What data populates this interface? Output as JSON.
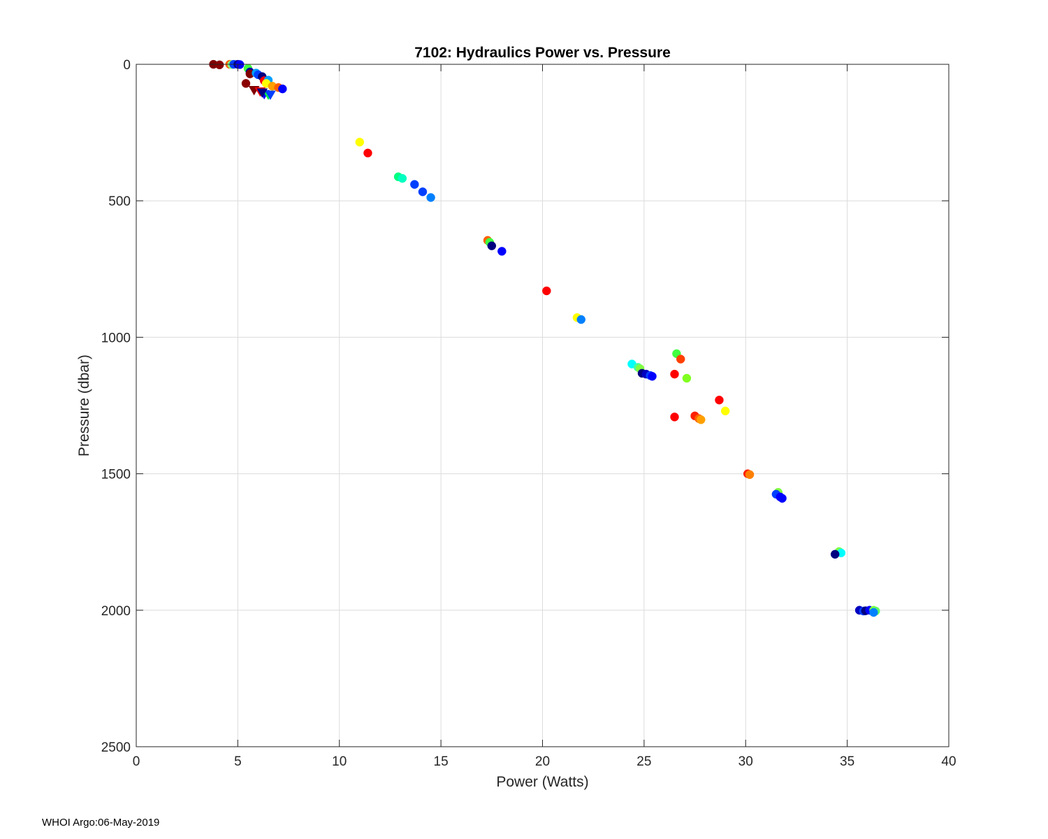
{
  "chart_data": {
    "type": "scatter",
    "title": "7102: Hydraulics Power vs. Pressure",
    "xlabel": "Power (Watts)",
    "ylabel": "Pressure (dbar)",
    "xlim": [
      0,
      40
    ],
    "ylim": [
      0,
      2500
    ],
    "y_reversed": true,
    "xticks": [
      0,
      5,
      10,
      15,
      20,
      25,
      30,
      35,
      40
    ],
    "yticks": [
      0,
      500,
      1000,
      1500,
      2000,
      2500
    ],
    "grid": true,
    "colormap": "jet",
    "points": [
      {
        "x": 3.8,
        "y": 0,
        "color": "#800000",
        "marker": "circle"
      },
      {
        "x": 4.1,
        "y": 2,
        "color": "#8b0000",
        "marker": "circle"
      },
      {
        "x": 4.6,
        "y": 0,
        "color": "#ff6000",
        "marker": "circle"
      },
      {
        "x": 4.7,
        "y": 1,
        "color": "#80ff80",
        "marker": "circle"
      },
      {
        "x": 4.8,
        "y": 0,
        "color": "#0040ff",
        "marker": "circle"
      },
      {
        "x": 5.0,
        "y": 0,
        "color": "#000090",
        "marker": "circle"
      },
      {
        "x": 5.1,
        "y": 1,
        "color": "#0000ff",
        "marker": "circle"
      },
      {
        "x": 5.5,
        "y": 15,
        "color": "#40ff40",
        "marker": "circle"
      },
      {
        "x": 5.6,
        "y": 28,
        "color": "#0000a0",
        "marker": "circle"
      },
      {
        "x": 5.6,
        "y": 35,
        "color": "#800000",
        "marker": "circle"
      },
      {
        "x": 5.9,
        "y": 32,
        "color": "#00a0ff",
        "marker": "circle"
      },
      {
        "x": 6.0,
        "y": 38,
        "color": "#0040ff",
        "marker": "circle"
      },
      {
        "x": 6.2,
        "y": 45,
        "color": "#000080",
        "marker": "circle"
      },
      {
        "x": 6.3,
        "y": 60,
        "color": "#ff0000",
        "marker": "circle"
      },
      {
        "x": 6.5,
        "y": 58,
        "color": "#00a0ff",
        "marker": "circle"
      },
      {
        "x": 6.4,
        "y": 70,
        "color": "#ffff00",
        "marker": "circle"
      },
      {
        "x": 6.7,
        "y": 80,
        "color": "#ffa000",
        "marker": "circle"
      },
      {
        "x": 7.0,
        "y": 85,
        "color": "#ff6000",
        "marker": "circle"
      },
      {
        "x": 7.2,
        "y": 90,
        "color": "#0000ff",
        "marker": "circle"
      },
      {
        "x": 5.4,
        "y": 70,
        "color": "#8b0000",
        "marker": "circle"
      },
      {
        "x": 5.8,
        "y": 95,
        "color": "#800000",
        "marker": "triangle-down"
      },
      {
        "x": 6.1,
        "y": 100,
        "color": "#ff0000",
        "marker": "triangle-down"
      },
      {
        "x": 6.3,
        "y": 110,
        "color": "#0000ff",
        "marker": "triangle-down"
      },
      {
        "x": 6.5,
        "y": 112,
        "color": "#00ff40",
        "marker": "triangle-down"
      },
      {
        "x": 6.6,
        "y": 112,
        "color": "#0040ff",
        "marker": "triangle-down"
      },
      {
        "x": 6.2,
        "y": 104,
        "color": "#000080",
        "marker": "triangle-down"
      },
      {
        "x": 11.0,
        "y": 285,
        "color": "#ffff00",
        "marker": "circle"
      },
      {
        "x": 11.4,
        "y": 325,
        "color": "#ff0000",
        "marker": "circle"
      },
      {
        "x": 12.9,
        "y": 412,
        "color": "#00ff80",
        "marker": "circle"
      },
      {
        "x": 13.1,
        "y": 418,
        "color": "#00ffc0",
        "marker": "circle"
      },
      {
        "x": 13.7,
        "y": 440,
        "color": "#0040ff",
        "marker": "circle"
      },
      {
        "x": 14.1,
        "y": 467,
        "color": "#0040ff",
        "marker": "circle"
      },
      {
        "x": 14.5,
        "y": 488,
        "color": "#0080ff",
        "marker": "circle"
      },
      {
        "x": 17.3,
        "y": 645,
        "color": "#ff6000",
        "marker": "circle"
      },
      {
        "x": 17.4,
        "y": 652,
        "color": "#40ff40",
        "marker": "circle"
      },
      {
        "x": 17.5,
        "y": 665,
        "color": "#000080",
        "marker": "circle"
      },
      {
        "x": 18.0,
        "y": 685,
        "color": "#0000ff",
        "marker": "circle"
      },
      {
        "x": 20.2,
        "y": 830,
        "color": "#ff0000",
        "marker": "circle"
      },
      {
        "x": 21.7,
        "y": 928,
        "color": "#ffff00",
        "marker": "circle"
      },
      {
        "x": 21.9,
        "y": 935,
        "color": "#0080ff",
        "marker": "circle"
      },
      {
        "x": 24.4,
        "y": 1098,
        "color": "#00ffff",
        "marker": "circle"
      },
      {
        "x": 24.7,
        "y": 1110,
        "color": "#40ffa0",
        "marker": "circle"
      },
      {
        "x": 24.8,
        "y": 1115,
        "color": "#80ff40",
        "marker": "circle"
      },
      {
        "x": 24.9,
        "y": 1132,
        "color": "#000080",
        "marker": "circle"
      },
      {
        "x": 25.1,
        "y": 1135,
        "color": "#0000c0",
        "marker": "circle"
      },
      {
        "x": 25.3,
        "y": 1140,
        "color": "#0040ff",
        "marker": "circle"
      },
      {
        "x": 25.4,
        "y": 1143,
        "color": "#0000ff",
        "marker": "circle"
      },
      {
        "x": 26.6,
        "y": 1060,
        "color": "#40ff40",
        "marker": "circle"
      },
      {
        "x": 26.8,
        "y": 1080,
        "color": "#ff4000",
        "marker": "circle"
      },
      {
        "x": 26.5,
        "y": 1135,
        "color": "#ff0000",
        "marker": "circle"
      },
      {
        "x": 27.1,
        "y": 1150,
        "color": "#80ff20",
        "marker": "circle"
      },
      {
        "x": 26.5,
        "y": 1292,
        "color": "#ff0000",
        "marker": "circle"
      },
      {
        "x": 27.5,
        "y": 1288,
        "color": "#ff2000",
        "marker": "circle"
      },
      {
        "x": 27.7,
        "y": 1298,
        "color": "#ff6000",
        "marker": "circle"
      },
      {
        "x": 27.8,
        "y": 1302,
        "color": "#ffa000",
        "marker": "circle"
      },
      {
        "x": 28.7,
        "y": 1230,
        "color": "#ff0000",
        "marker": "circle"
      },
      {
        "x": 29.0,
        "y": 1270,
        "color": "#ffff00",
        "marker": "circle"
      },
      {
        "x": 30.1,
        "y": 1500,
        "color": "#ff2000",
        "marker": "circle"
      },
      {
        "x": 30.2,
        "y": 1503,
        "color": "#ff8000",
        "marker": "circle"
      },
      {
        "x": 31.6,
        "y": 1568,
        "color": "#80ff40",
        "marker": "circle"
      },
      {
        "x": 31.5,
        "y": 1575,
        "color": "#0040ff",
        "marker": "circle"
      },
      {
        "x": 31.7,
        "y": 1585,
        "color": "#0000ff",
        "marker": "circle"
      },
      {
        "x": 31.8,
        "y": 1590,
        "color": "#0000ff",
        "marker": "circle"
      },
      {
        "x": 34.6,
        "y": 1785,
        "color": "#80ff40",
        "marker": "circle"
      },
      {
        "x": 34.7,
        "y": 1790,
        "color": "#00ffff",
        "marker": "circle"
      },
      {
        "x": 34.4,
        "y": 1795,
        "color": "#000080",
        "marker": "circle"
      },
      {
        "x": 35.6,
        "y": 2000,
        "color": "#0000c0",
        "marker": "circle"
      },
      {
        "x": 35.8,
        "y": 2003,
        "color": "#0040ff",
        "marker": "circle"
      },
      {
        "x": 35.9,
        "y": 2002,
        "color": "#000080",
        "marker": "circle"
      },
      {
        "x": 36.1,
        "y": 2000,
        "color": "#0000ff",
        "marker": "circle"
      },
      {
        "x": 36.3,
        "y": 2000,
        "color": "#80ff40",
        "marker": "circle"
      },
      {
        "x": 36.4,
        "y": 2003,
        "color": "#60ff60",
        "marker": "circle"
      },
      {
        "x": 36.3,
        "y": 2008,
        "color": "#0080ff",
        "marker": "circle"
      }
    ]
  },
  "footer": {
    "text": "WHOI Argo:06-May-2019"
  }
}
